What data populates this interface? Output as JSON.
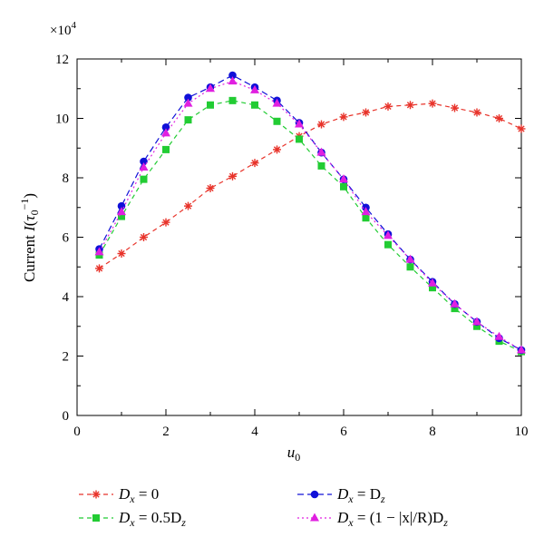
{
  "chart_data": {
    "type": "line",
    "title": "",
    "multiplier": "×10",
    "multiplier_exp": "4",
    "xlabel": {
      "main": "u",
      "sub": "0"
    },
    "ylabel": {
      "pre": "Current ",
      "i": "I",
      "paren_open": "(",
      "tau": "τ",
      "sub": "0",
      "sup": "−1",
      "paren_close": ")"
    },
    "xlim": [
      0,
      10
    ],
    "ylim": [
      0,
      12
    ],
    "xticks": [
      "0",
      "2",
      "4",
      "6",
      "8",
      "10"
    ],
    "yticks": [
      "0",
      "2",
      "4",
      "6",
      "8",
      "10",
      "12"
    ],
    "grid": false,
    "legend_position": "bottom",
    "x": [
      0.5,
      1,
      1.5,
      2,
      2.5,
      3,
      3.5,
      4,
      4.5,
      5,
      5.5,
      6,
      6.5,
      7,
      7.5,
      8,
      8.5,
      9,
      9.5,
      10
    ],
    "series": [
      {
        "legend": {
          "pre": "D",
          "sub": "x",
          "post": " = 0"
        },
        "color": "#e8332a",
        "marker": "star",
        "dash": "5,4",
        "values": [
          4.95,
          5.45,
          6.0,
          6.5,
          7.05,
          7.65,
          8.05,
          8.5,
          8.95,
          9.4,
          9.8,
          10.05,
          10.2,
          10.4,
          10.45,
          10.5,
          10.35,
          10.2,
          10.0,
          9.65
        ]
      },
      {
        "legend": {
          "pre": "D",
          "sub": "x",
          "post": " = D",
          "sub2": "z",
          "post2": ""
        },
        "color": "#1010d8",
        "marker": "circle",
        "dash": "7,4",
        "values": [
          5.6,
          7.05,
          8.55,
          9.7,
          10.7,
          11.05,
          11.45,
          11.05,
          10.6,
          9.85,
          8.85,
          7.95,
          7.0,
          6.1,
          5.25,
          4.5,
          3.75,
          3.15,
          2.6,
          2.2
        ]
      },
      {
        "legend": {
          "pre": "D",
          "sub": "x",
          "post": " = 0.5D",
          "sub2": "z",
          "post2": ""
        },
        "color": "#22cc33",
        "marker": "square",
        "dash": "5,4",
        "values": [
          5.4,
          6.7,
          7.95,
          8.95,
          9.95,
          10.45,
          10.6,
          10.45,
          9.9,
          9.3,
          8.4,
          7.7,
          6.65,
          5.75,
          5.0,
          4.3,
          3.6,
          3.0,
          2.5,
          2.15
        ]
      },
      {
        "legend": {
          "pre": "D",
          "sub": "x",
          "post": " = (1 − |x|/R)D",
          "sub2": "z",
          "post2": ""
        },
        "color": "#e020e0",
        "marker": "triangle",
        "dash": "2,3",
        "values": [
          5.5,
          6.85,
          8.35,
          9.5,
          10.5,
          11.0,
          11.25,
          10.95,
          10.5,
          9.8,
          8.85,
          7.95,
          6.85,
          6.05,
          5.25,
          4.45,
          3.75,
          3.15,
          2.65,
          2.2
        ]
      }
    ]
  }
}
